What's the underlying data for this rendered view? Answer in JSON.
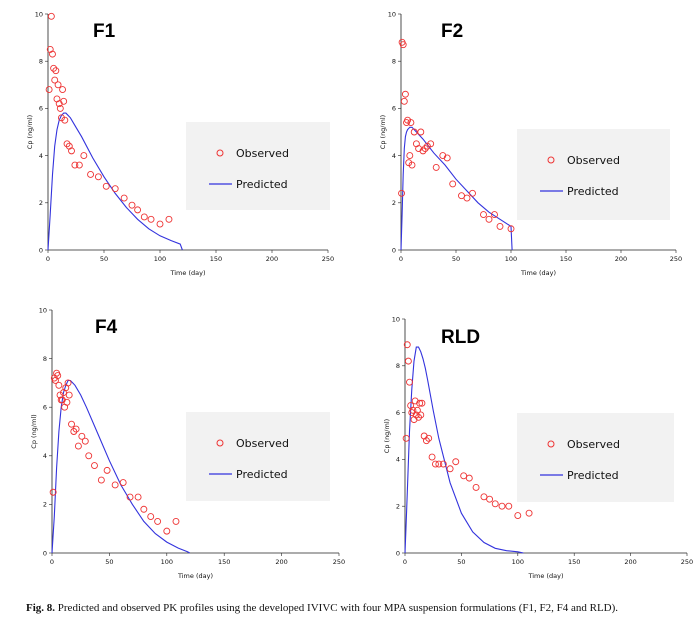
{
  "caption": {
    "label": "Fig. 8.",
    "text": "Predicted and observed PK profiles using the developed IVIVC with four MPA suspension formulations (F1, F2, F4 and RLD)."
  },
  "colors": {
    "observed": "#ee3333",
    "predicted": "#3333dd",
    "legend_bg": "#f2f2f2",
    "axis": "#222222"
  },
  "chart_data": [
    {
      "type": "scatter+line",
      "title": "F1",
      "xlabel": "Time (day)",
      "ylabel": "Cp (ng/ml)",
      "xlim": [
        0,
        250
      ],
      "ylim": [
        0,
        10
      ],
      "xticks": [
        0,
        50,
        100,
        150,
        200,
        250
      ],
      "yticks": [
        0,
        2,
        4,
        6,
        8,
        10
      ],
      "legend": [
        "Observed",
        "Predicted"
      ],
      "observed": {
        "x": [
          1,
          2,
          3,
          4,
          5,
          6,
          7,
          8,
          9,
          10,
          11,
          12,
          13,
          14,
          15,
          17,
          19,
          21,
          24,
          28,
          32,
          38,
          45,
          52,
          60,
          68,
          75,
          80,
          86,
          92,
          100,
          108
        ],
        "y": [
          6.8,
          8.5,
          9.9,
          8.3,
          7.7,
          7.2,
          7.6,
          6.4,
          7.0,
          6.2,
          6.0,
          5.6,
          6.8,
          6.3,
          5.5,
          4.5,
          4.4,
          4.2,
          3.6,
          3.6,
          4.0,
          3.2,
          3.1,
          2.7,
          2.6,
          2.2,
          1.9,
          1.7,
          1.4,
          1.3,
          1.1,
          1.3
        ]
      },
      "predicted": {
        "x": [
          0,
          2,
          4,
          6,
          8,
          10,
          12,
          14,
          16,
          18,
          20,
          25,
          30,
          40,
          50,
          60,
          70,
          80,
          90,
          100,
          110,
          118,
          120
        ],
        "y": [
          0,
          1.5,
          3.2,
          4.4,
          5.1,
          5.5,
          5.7,
          5.8,
          5.8,
          5.7,
          5.6,
          5.2,
          4.8,
          3.9,
          3.1,
          2.4,
          1.8,
          1.3,
          0.9,
          0.6,
          0.4,
          0.25,
          0
        ]
      }
    },
    {
      "type": "scatter+line",
      "title": "F2",
      "xlabel": "Time (day)",
      "ylabel": "Cp (ng/ml)",
      "xlim": [
        0,
        250
      ],
      "ylim": [
        0,
        10
      ],
      "xticks": [
        0,
        50,
        100,
        150,
        200,
        250
      ],
      "yticks": [
        0,
        2,
        4,
        6,
        8,
        10
      ],
      "legend": [
        "Observed",
        "Predicted"
      ],
      "observed": {
        "x": [
          0.5,
          1,
          2,
          3,
          4,
          5,
          6,
          7,
          8,
          9,
          10,
          12,
          14,
          16,
          18,
          20,
          22,
          24,
          27,
          32,
          38,
          42,
          47,
          55,
          60,
          65,
          75,
          80,
          85,
          90,
          100
        ],
        "y": [
          2.4,
          8.8,
          8.7,
          6.3,
          6.6,
          5.4,
          5.5,
          3.7,
          4.0,
          5.4,
          3.6,
          5.0,
          4.5,
          4.3,
          5.0,
          4.2,
          4.3,
          4.4,
          4.5,
          3.5,
          4.0,
          3.9,
          2.8,
          2.3,
          2.2,
          2.4,
          1.5,
          1.3,
          1.5,
          1.0,
          0.9
        ]
      },
      "predicted": {
        "x": [
          0,
          1,
          2,
          3,
          4,
          5,
          6,
          8,
          10,
          12,
          14,
          16,
          20,
          25,
          30,
          40,
          50,
          60,
          70,
          80,
          90,
          100,
          101
        ],
        "y": [
          0,
          1.5,
          3.2,
          4.3,
          4.8,
          5.0,
          5.1,
          5.2,
          5.2,
          5.1,
          5.0,
          4.9,
          4.7,
          4.4,
          4.1,
          3.6,
          3.0,
          2.5,
          2.0,
          1.6,
          1.3,
          1.0,
          0
        ]
      }
    },
    {
      "type": "scatter+line",
      "title": "F4",
      "xlabel": "Time (day)",
      "ylabel": "Cp (ng/ml)",
      "xlim": [
        0,
        250
      ],
      "ylim": [
        0,
        10
      ],
      "xticks": [
        0,
        50,
        100,
        150,
        200,
        250
      ],
      "yticks": [
        0,
        2,
        4,
        6,
        8,
        10
      ],
      "legend": [
        "Observed",
        "Predicted"
      ],
      "observed": {
        "x": [
          1,
          2,
          3,
          4,
          5,
          6,
          7,
          8,
          9,
          10,
          11,
          12,
          13,
          14,
          15,
          17,
          19,
          21,
          23,
          26,
          29,
          32,
          37,
          43,
          48,
          55,
          62,
          68,
          75,
          80,
          86,
          92,
          100,
          108
        ],
        "y": [
          2.5,
          7.2,
          7.1,
          7.4,
          7.3,
          6.9,
          6.5,
          6.3,
          6.3,
          6.6,
          6.0,
          6.8,
          6.2,
          7.0,
          6.5,
          5.3,
          5.0,
          5.1,
          4.4,
          4.8,
          4.6,
          4.0,
          3.6,
          3.0,
          3.4,
          2.8,
          2.9,
          2.3,
          2.3,
          1.8,
          1.5,
          1.3,
          0.9,
          1.3
        ]
      },
      "predicted": {
        "x": [
          0,
          2,
          4,
          6,
          8,
          10,
          12,
          14,
          16,
          18,
          20,
          25,
          30,
          40,
          50,
          60,
          70,
          80,
          90,
          100,
          110,
          118,
          120
        ],
        "y": [
          0,
          1.5,
          3.5,
          5.0,
          6.0,
          6.6,
          6.9,
          7.1,
          7.1,
          7.0,
          6.9,
          6.5,
          6.0,
          4.9,
          3.8,
          2.8,
          2.0,
          1.3,
          0.8,
          0.45,
          0.2,
          0.05,
          0
        ]
      }
    },
    {
      "type": "scatter+line",
      "title": "RLD",
      "xlabel": "Time (day)",
      "ylabel": "Cp (ng/ml)",
      "xlim": [
        0,
        250
      ],
      "ylim": [
        0,
        10
      ],
      "xticks": [
        0,
        50,
        100,
        150,
        200,
        250
      ],
      "yticks": [
        0,
        2,
        4,
        6,
        8,
        10
      ],
      "legend": [
        "Observed",
        "Predicted"
      ],
      "observed": {
        "x": [
          1,
          2,
          3,
          4,
          5,
          6,
          7,
          8,
          9,
          10,
          11,
          12,
          13,
          14,
          15,
          17,
          19,
          21,
          24,
          27,
          30,
          34,
          40,
          45,
          52,
          57,
          63,
          70,
          75,
          80,
          86,
          92,
          100,
          110
        ],
        "y": [
          4.9,
          8.9,
          8.2,
          7.3,
          6.3,
          6.0,
          6.1,
          5.7,
          6.5,
          5.9,
          6.1,
          5.8,
          6.4,
          5.9,
          6.4,
          5.0,
          4.8,
          4.9,
          4.1,
          3.8,
          3.8,
          3.8,
          3.6,
          3.9,
          3.3,
          3.2,
          2.8,
          2.4,
          2.3,
          2.1,
          2.0,
          2.0,
          1.6,
          1.7
        ]
      },
      "predicted": {
        "x": [
          0,
          1,
          2,
          4,
          6,
          8,
          10,
          12,
          14,
          16,
          18,
          20,
          25,
          30,
          40,
          50,
          60,
          70,
          80,
          90,
          100,
          105
        ],
        "y": [
          0,
          1.2,
          2.6,
          5.2,
          7.0,
          8.2,
          8.8,
          8.8,
          8.6,
          8.3,
          7.9,
          7.4,
          6.1,
          4.9,
          3.0,
          1.7,
          0.9,
          0.45,
          0.2,
          0.1,
          0.05,
          0
        ]
      }
    }
  ]
}
